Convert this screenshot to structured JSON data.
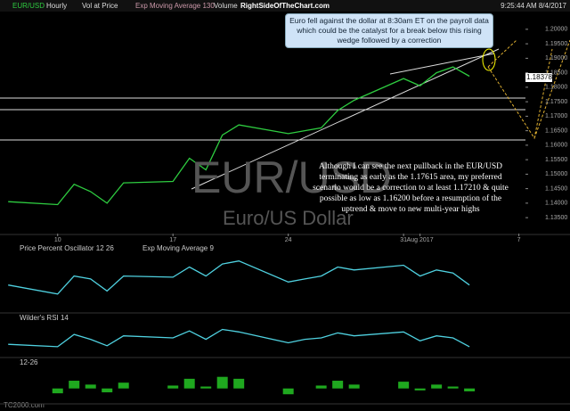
{
  "header": {
    "symbol": "EUR/USD",
    "interval": "Hourly",
    "studies": [
      "Vol at Price",
      "Exp Moving Average 130",
      "Volume"
    ],
    "site": "RightSideOfTheChart.com",
    "timestamp": "9:25:44 AM 8/4/2017"
  },
  "annotations": {
    "callout": "Euro fell against the dollar at 8:30am ET on the payroll data which could be the catalyst for a break below this rising wedge followed by a correction",
    "scenario": "Although I can see the next pullback in the EUR/USD terminating as early as the 1.17615 area, my preferred scenario would be a correction to at least 1.17210 & quite possible as low as 1.16200 before a resumption of the uptrend & move to new multi-year highs",
    "watermark": "EUR/USD",
    "watermark_sub": "Euro/US Dollar",
    "last_price": "1.18378",
    "brand": "TC2000.com"
  },
  "chart_data": [
    {
      "type": "line",
      "x": [
        7,
        10,
        11,
        12,
        13,
        14,
        17,
        18,
        19,
        20,
        21,
        24,
        25,
        26,
        27,
        28,
        31,
        32,
        33,
        34,
        35
      ],
      "series": [
        {
          "name": "EUR/USD",
          "color": "#2ecc40",
          "values": [
            1.1405,
            1.1395,
            1.1465,
            1.144,
            1.14,
            1.147,
            1.1475,
            1.1555,
            1.1515,
            1.1635,
            1.167,
            1.164,
            1.165,
            1.166,
            1.172,
            1.1755,
            1.183,
            1.1805,
            1.185,
            1.187,
            1.1838
          ]
        }
      ],
      "xlim": [
        6.5,
        38.4
      ],
      "xticks": [
        10,
        17,
        24,
        31,
        {
          "value": 32,
          "label": "Aug 2017"
        },
        {
          "value": 38,
          "label": "7"
        }
      ],
      "ylim": [
        1.1295,
        1.2058
      ],
      "yticks": [
        {
          "value": 1.135,
          "label": "1.13500"
        },
        {
          "value": 1.14,
          "label": "1.14000"
        },
        {
          "value": 1.145,
          "label": "1.14500"
        },
        {
          "value": 1.15,
          "label": "1.15000"
        },
        {
          "value": 1.155,
          "label": "1.15500"
        },
        {
          "value": 1.16,
          "label": "1.16000"
        },
        {
          "value": 1.165,
          "label": "1.16500"
        },
        {
          "value": 1.17,
          "label": "1.17000"
        },
        {
          "value": 1.175,
          "label": "1.17500"
        },
        {
          "value": 1.18,
          "label": "1.18000"
        },
        {
          "value": 1.185,
          "label": "1.18500"
        },
        {
          "value": 1.19,
          "label": "1.19000"
        },
        {
          "value": 1.195,
          "label": "1.19500"
        },
        {
          "value": 1.2,
          "label": "1.20000"
        }
      ]
    },
    {
      "type": "line",
      "title": "Price Percent Oscillator 12 26",
      "subtitle": "Exp Moving Average 9",
      "x": [
        7,
        10,
        11,
        12,
        13,
        14,
        17,
        18,
        19,
        20,
        21,
        24,
        25,
        26,
        27,
        28,
        31,
        32,
        33,
        34,
        35
      ],
      "series": [
        {
          "name": "PPO",
          "color": "#4fd1e0",
          "values": [
            0.05,
            -0.1,
            0.2,
            0.15,
            -0.05,
            0.2,
            0.18,
            0.35,
            0.2,
            0.4,
            0.45,
            0.1,
            0.15,
            0.2,
            0.35,
            0.3,
            0.38,
            0.2,
            0.3,
            0.25,
            0.05
          ]
        }
      ],
      "xlim": [
        6.5,
        38.4
      ],
      "ylim": [
        -0.4,
        0.55
      ]
    },
    {
      "type": "line",
      "title": "Wilder's RSI 14",
      "x": [
        7,
        10,
        11,
        12,
        13,
        14,
        17,
        18,
        19,
        20,
        21,
        24,
        25,
        26,
        27,
        28,
        31,
        32,
        33,
        34,
        35
      ],
      "series": [
        {
          "name": "RSI",
          "color": "#4fd1e0",
          "values": [
            45,
            40,
            65,
            55,
            42,
            62,
            58,
            72,
            55,
            75,
            70,
            48,
            55,
            58,
            68,
            62,
            70,
            52,
            62,
            58,
            40
          ]
        }
      ],
      "xlim": [
        6.5,
        38.4
      ],
      "ylim": [
        20,
        85
      ]
    },
    {
      "type": "bar",
      "title": "12-26",
      "x": [
        7,
        10,
        11,
        12,
        13,
        14,
        17,
        18,
        19,
        20,
        21,
        24,
        25,
        26,
        27,
        28,
        31,
        32,
        33,
        34,
        35
      ],
      "series": [
        {
          "name": "Histogram",
          "color": "#1fa81f",
          "values": [
            0,
            -0.05,
            0.08,
            0.04,
            -0.04,
            0.06,
            0.03,
            0.1,
            0.02,
            0.12,
            0.1,
            -0.06,
            0,
            0.03,
            0.08,
            0.04,
            0.07,
            -0.02,
            0.04,
            0.02,
            -0.03
          ]
        }
      ],
      "xlim": [
        6.5,
        38.4
      ],
      "ylim": [
        -0.15,
        0.2
      ]
    }
  ]
}
